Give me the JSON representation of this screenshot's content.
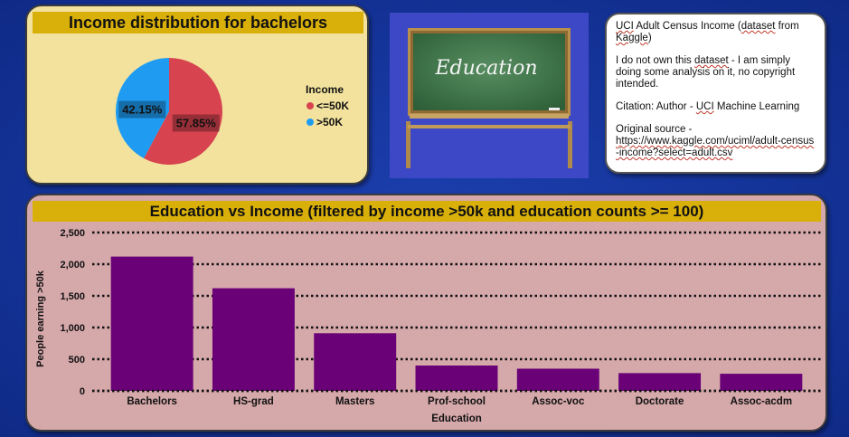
{
  "pie_panel": {
    "title": "Income distribution for bachelors",
    "chart_data": {
      "type": "pie",
      "legend_title": "Income",
      "legend_position": "right",
      "slices": [
        {
          "label": "<=50K",
          "value": 57.85,
          "value_label": "57.85%",
          "color": "#d7434f"
        },
        {
          "label": ">50K",
          "value": 42.15,
          "value_label": "42.15%",
          "color": "#1f9cf2"
        }
      ]
    }
  },
  "image_panel": {
    "chalkboard_text": "Education"
  },
  "info_panel": {
    "line1_prefix": "UCI",
    "line1_rest": " Adult Census Income (",
    "line1_dataset": "dataset",
    "line1_from": " from ",
    "line1_kaggle": "Kaggle",
    "line1_end": ")",
    "disclaimer_prefix": "I do not own this ",
    "disclaimer_dataset": "dataset",
    "disclaimer_rest": " - I am simply doing some analysis on it, no copyright intended.",
    "citation_prefix": "Citation:  Author - ",
    "citation_uci": "UCI",
    "citation_rest": " Machine Learning",
    "source_label": "Original source -",
    "source_url": "https://www.kaggle.com/uciml/adult-census-income?select=adult.csv"
  },
  "bar_panel": {
    "title": "Education vs Income (filtered by income >50k and education counts >= 100)",
    "chart_data": {
      "type": "bar",
      "xlabel": "Education",
      "ylabel": "People earning >50k",
      "ylim": [
        0,
        2500
      ],
      "yticks": [
        0,
        500,
        1000,
        1500,
        2000,
        2500
      ],
      "ytick_labels": [
        "0",
        "500",
        "1,000",
        "1,500",
        "2,000",
        "2,500"
      ],
      "grid": true,
      "bar_color": "#6a0177",
      "categories": [
        "Bachelors",
        "HS-grad",
        "Masters",
        "Prof-school",
        "Assoc-voc",
        "Doctorate",
        "Assoc-acdm"
      ],
      "values": [
        2120,
        1620,
        910,
        400,
        350,
        280,
        270
      ]
    }
  }
}
